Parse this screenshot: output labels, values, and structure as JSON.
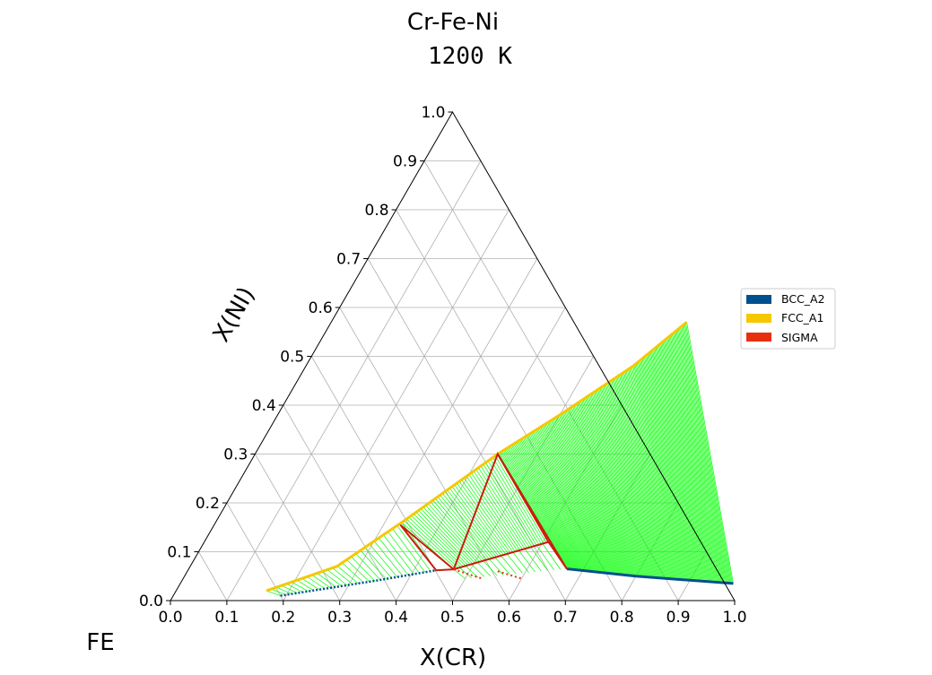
{
  "chart_data": {
    "type": "ternary",
    "title": "Cr-Fe-Ni",
    "subtitle": "1200 K",
    "xlabel": "X(CR)",
    "ylabel": "X(NI)",
    "corner_label": "FE",
    "xlim": [
      0,
      1
    ],
    "ylim": [
      0,
      1
    ],
    "grid": true,
    "x_ticks": [
      "0.0",
      "0.1",
      "0.2",
      "0.3",
      "0.4",
      "0.5",
      "0.6",
      "0.7",
      "0.8",
      "0.9",
      "1.0"
    ],
    "y_ticks": [
      "0.0",
      "0.1",
      "0.2",
      "0.3",
      "0.4",
      "0.5",
      "0.6",
      "0.7",
      "0.8",
      "0.9",
      "1.0"
    ],
    "legend_position": "right",
    "legend": [
      {
        "name": "BCC_A2",
        "color": "#00508c"
      },
      {
        "name": "FCC_A1",
        "color": "#f5c800"
      },
      {
        "name": "SIGMA",
        "color": "#e83010"
      }
    ],
    "tie_line_color": "#00ff00",
    "phase_boundaries": {
      "fcc_a1": [
        [
          0.16,
          0.02
        ],
        [
          0.26,
          0.07
        ],
        [
          0.33,
          0.16
        ],
        [
          0.43,
          0.3
        ],
        [
          0.5,
          0.38
        ],
        [
          0.58,
          0.48
        ],
        [
          0.63,
          0.57
        ]
      ],
      "bcc_a2_upper": [
        [
          0.19,
          0.01
        ],
        [
          0.34,
          0.04
        ],
        [
          0.44,
          0.062
        ]
      ],
      "bcc_a2_lower": [
        [
          0.67,
          0.065
        ],
        [
          0.8,
          0.05
        ],
        [
          0.98,
          0.035
        ]
      ],
      "sigma_bcc_fcc_triangle": [
        [
          0.33,
          0.155
        ],
        [
          0.44,
          0.062
        ],
        [
          0.47,
          0.064
        ]
      ],
      "sigma_region": [
        [
          0.47,
          0.064
        ],
        [
          0.61,
          0.12
        ],
        [
          0.43,
          0.3
        ]
      ],
      "sigma_fcc_bcc_triangle": [
        [
          0.43,
          0.3
        ],
        [
          0.61,
          0.12
        ],
        [
          0.67,
          0.065
        ]
      ]
    },
    "tie_lines": {
      "fcc_bcc_low": [
        [
          [
            0.16,
            0.02
          ],
          [
            0.19,
            0.01
          ]
        ],
        [
          [
            0.26,
            0.07
          ],
          [
            0.34,
            0.04
          ]
        ],
        [
          [
            0.33,
            0.155
          ],
          [
            0.44,
            0.062
          ]
        ]
      ],
      "fcc_sigma": [
        [
          [
            0.33,
            0.16
          ],
          [
            0.47,
            0.064
          ]
        ],
        [
          [
            0.43,
            0.3
          ],
          [
            0.61,
            0.12
          ]
        ]
      ],
      "sigma_bcc": [
        [
          [
            0.47,
            0.064
          ],
          [
            0.5,
            0.045
          ]
        ],
        [
          [
            0.61,
            0.12
          ],
          [
            0.67,
            0.065
          ]
        ]
      ],
      "fcc_bcc_high": [
        [
          [
            0.43,
            0.3
          ],
          [
            0.67,
            0.065
          ]
        ],
        [
          [
            0.63,
            0.57
          ],
          [
            0.98,
            0.035
          ]
        ]
      ]
    }
  }
}
